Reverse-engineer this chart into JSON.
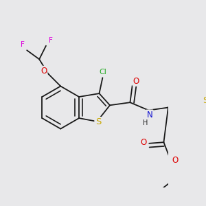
{
  "bg_color": "#e8e8ea",
  "bond_color": "#1a1a1a",
  "bond_width": 1.3,
  "colors": {
    "N": "#1010d0",
    "O": "#dd0000",
    "S": "#c8a800",
    "F": "#dd00dd",
    "Cl": "#22aa22",
    "C": "#1a1a1a",
    "H": "#1a1a1a"
  },
  "fs": 7.5
}
